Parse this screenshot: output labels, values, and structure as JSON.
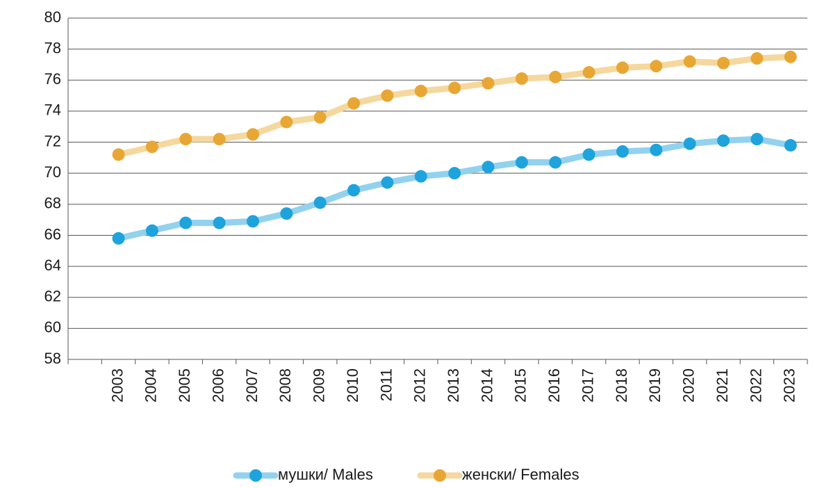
{
  "chart_data": {
    "type": "line",
    "categories": [
      null,
      "2003",
      "2004",
      "2005",
      "2006",
      "2007",
      "2008",
      "2009",
      "2010",
      "2011",
      "2012",
      "2013",
      "2014",
      "2015",
      "2016",
      "2017",
      "2018",
      "2019",
      "2020",
      "2021",
      "2022",
      "2023"
    ],
    "series": [
      {
        "name": "мушки/ Males",
        "color": "#1fa3dc",
        "line_color": "#92d2ee",
        "values": [
          null,
          65.8,
          66.3,
          66.8,
          66.8,
          66.9,
          67.4,
          68.1,
          68.9,
          69.4,
          69.8,
          70.0,
          70.4,
          70.7,
          70.7,
          71.2,
          71.4,
          71.5,
          71.9,
          72.1,
          72.2,
          71.8
        ]
      },
      {
        "name": "женски/ Females",
        "color": "#e8a735",
        "line_color": "#f5d89e",
        "values": [
          null,
          71.2,
          71.7,
          72.2,
          72.2,
          72.5,
          73.3,
          73.6,
          74.5,
          75.0,
          75.3,
          75.5,
          75.8,
          76.1,
          76.2,
          76.5,
          76.8,
          76.9,
          77.2,
          77.1,
          77.4,
          77.5
        ]
      }
    ],
    "ylim": [
      58,
      80
    ],
    "yticks": [
      58,
      60,
      62,
      64,
      66,
      68,
      70,
      72,
      74,
      76,
      78,
      80
    ],
    "grid": true,
    "legend": "bottom"
  }
}
